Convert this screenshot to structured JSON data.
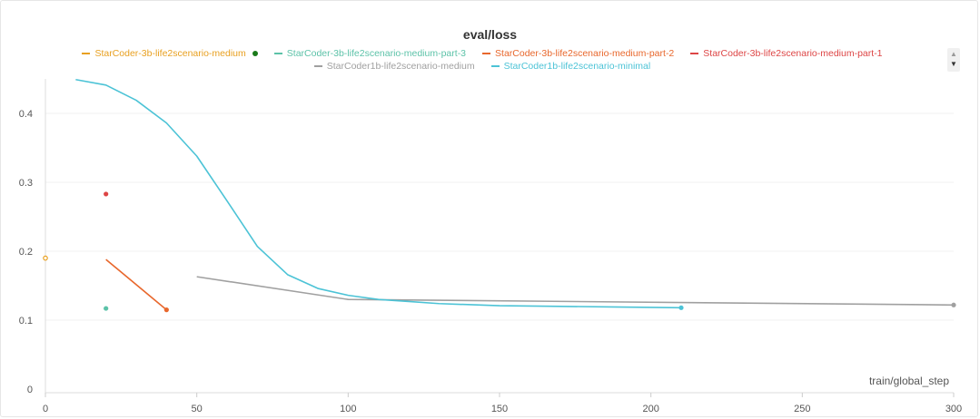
{
  "chart_data": {
    "type": "line",
    "title": "eval/loss",
    "xlabel": "train/global_step",
    "ylabel": "",
    "xlim": [
      0,
      300
    ],
    "ylim": [
      0,
      0.45
    ],
    "x_ticks": [
      0,
      50,
      100,
      150,
      200,
      250,
      300
    ],
    "y_ticks": [
      0,
      0.1,
      0.2,
      0.3,
      0.4
    ],
    "y_tick_labels": [
      "0",
      "0.1",
      "0.2",
      "0.3",
      "0.4"
    ],
    "x_tick_labels": [
      "0",
      "50",
      "100",
      "150",
      "200",
      "250",
      "300"
    ],
    "grid": true,
    "legend_position": "top",
    "series": [
      {
        "name": "StarCoder-3b-life2scenario-medium",
        "color": "#e8a020",
        "x": [
          0
        ],
        "y": [
          0.19
        ]
      },
      {
        "name": "StarCoder-3b-life2scenario-medium-part-3",
        "color": "#5cc2a8",
        "x": [
          20
        ],
        "y": [
          0.117
        ]
      },
      {
        "name": "StarCoder-3b-life2scenario-medium-part-2",
        "color": "#e8672c",
        "x": [
          20,
          40
        ],
        "y": [
          0.188,
          0.115
        ]
      },
      {
        "name": "StarCoder-3b-life2scenario-medium-part-1",
        "color": "#dd4545",
        "x": [
          20
        ],
        "y": [
          0.283
        ]
      },
      {
        "name": "StarCoder1b-life2scenario-medium",
        "color": "#a0a0a0",
        "x": [
          50,
          100,
          300
        ],
        "y": [
          0.163,
          0.13,
          0.122
        ]
      },
      {
        "name": "StarCoder1b-life2scenario-minimal",
        "color": "#4cc3d6",
        "x": [
          10,
          20,
          30,
          40,
          50,
          60,
          70,
          80,
          90,
          100,
          110,
          120,
          130,
          150,
          170,
          190,
          210
        ],
        "y": [
          0.449,
          0.441,
          0.419,
          0.386,
          0.338,
          0.273,
          0.207,
          0.166,
          0.146,
          0.136,
          0.13,
          0.127,
          0.124,
          0.121,
          0.12,
          0.119,
          0.118
        ]
      }
    ],
    "legend_extra_dot_color": "#1a7a1a"
  }
}
